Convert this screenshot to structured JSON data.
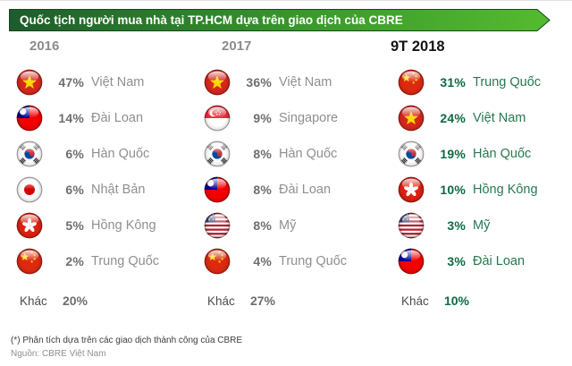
{
  "banner": {
    "title": "Quốc tịch người mua nhà tại TP.HCM dựa trên giao dịch của CBRE"
  },
  "columns": [
    {
      "year": "2016",
      "style": "gray",
      "rows": [
        {
          "flag": "vietnam-flag",
          "percent": "47%",
          "name": "Việt Nam"
        },
        {
          "flag": "taiwan-flag",
          "percent": "14%",
          "name": "Đài Loan"
        },
        {
          "flag": "south-korea-flag",
          "percent": "6%",
          "name": "Hàn Quốc"
        },
        {
          "flag": "japan-flag",
          "percent": "6%",
          "name": "Nhật Bản"
        },
        {
          "flag": "hong-kong-flag",
          "percent": "5%",
          "name": "Hồng Kông"
        },
        {
          "flag": "china-flag",
          "percent": "2%",
          "name": "Trung Quốc"
        }
      ],
      "other_label": "Khác",
      "other_value": "20%"
    },
    {
      "year": "2017",
      "style": "gray",
      "rows": [
        {
          "flag": "vietnam-flag",
          "percent": "36%",
          "name": "Việt Nam"
        },
        {
          "flag": "singapore-flag",
          "percent": "9%",
          "name": "Singapore"
        },
        {
          "flag": "south-korea-flag",
          "percent": "8%",
          "name": "Hàn Quốc"
        },
        {
          "flag": "taiwan-flag",
          "percent": "8%",
          "name": "Đài Loan"
        },
        {
          "flag": "usa-flag",
          "percent": "8%",
          "name": "Mỹ"
        },
        {
          "flag": "china-flag",
          "percent": "4%",
          "name": "Trung Quốc"
        }
      ],
      "other_label": "Khác",
      "other_value": "27%"
    },
    {
      "year": "9T 2018",
      "style": "green",
      "rows": [
        {
          "flag": "china-flag",
          "percent": "31%",
          "name": "Trung Quốc"
        },
        {
          "flag": "vietnam-flag",
          "percent": "24%",
          "name": "Việt Nam"
        },
        {
          "flag": "south-korea-flag",
          "percent": "19%",
          "name": "Hàn Quốc"
        },
        {
          "flag": "hong-kong-flag",
          "percent": "10%",
          "name": "Hồng Kông"
        },
        {
          "flag": "usa-flag",
          "percent": "3%",
          "name": "Mỹ"
        },
        {
          "flag": "taiwan-flag",
          "percent": "3%",
          "name": "Đài Loan"
        }
      ],
      "other_label": "Khác",
      "other_value": "10%"
    }
  ],
  "footnote": "(*) Phân tích dựa trên các giao dịch thành công của CBRE",
  "source": "Nguồn: CBRE Việt Nam",
  "colors": {
    "banner_gradient_start": "#1d5c2c",
    "banner_gradient_end": "#54bb2f",
    "gray_percent": "#6e6e6e",
    "gray_name": "#8f8f8f",
    "green_percent": "#0c6b43",
    "green_name": "#26784f",
    "year_inactive": "#8c8c8c",
    "year_active": "#141414"
  },
  "chart_data": {
    "type": "table",
    "title": "Quốc tịch người mua nhà tại TP.HCM dựa trên giao dịch của CBRE",
    "unit": "%",
    "groups": [
      {
        "period": "2016",
        "entries": [
          {
            "country": "Việt Nam",
            "value": 47
          },
          {
            "country": "Đài Loan",
            "value": 14
          },
          {
            "country": "Hàn Quốc",
            "value": 6
          },
          {
            "country": "Nhật Bản",
            "value": 6
          },
          {
            "country": "Hồng Kông",
            "value": 5
          },
          {
            "country": "Trung Quốc",
            "value": 2
          },
          {
            "country": "Khác",
            "value": 20
          }
        ]
      },
      {
        "period": "2017",
        "entries": [
          {
            "country": "Việt Nam",
            "value": 36
          },
          {
            "country": "Singapore",
            "value": 9
          },
          {
            "country": "Hàn Quốc",
            "value": 8
          },
          {
            "country": "Đài Loan",
            "value": 8
          },
          {
            "country": "Mỹ",
            "value": 8
          },
          {
            "country": "Trung Quốc",
            "value": 4
          },
          {
            "country": "Khác",
            "value": 27
          }
        ]
      },
      {
        "period": "9T 2018",
        "entries": [
          {
            "country": "Trung Quốc",
            "value": 31
          },
          {
            "country": "Việt Nam",
            "value": 24
          },
          {
            "country": "Hàn Quốc",
            "value": 19
          },
          {
            "country": "Hồng Kông",
            "value": 10
          },
          {
            "country": "Mỹ",
            "value": 3
          },
          {
            "country": "Đài Loan",
            "value": 3
          },
          {
            "country": "Khác",
            "value": 10
          }
        ]
      }
    ]
  }
}
